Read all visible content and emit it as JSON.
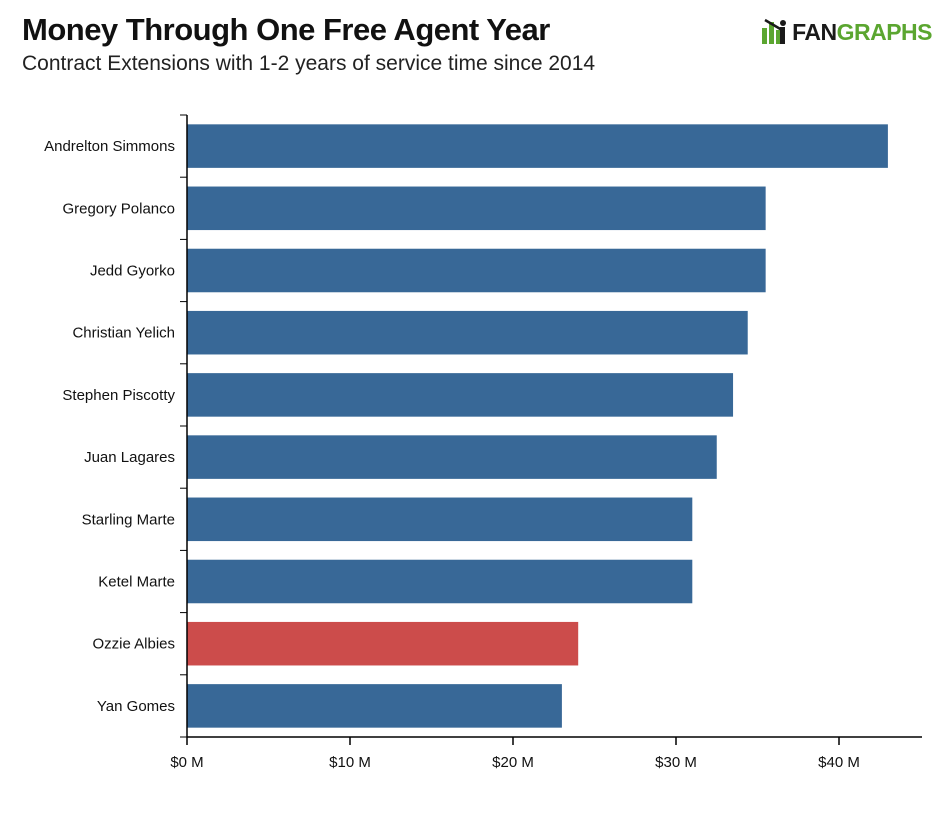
{
  "header": {
    "title": "Money Through One Free Agent Year",
    "subtitle": "Contract Extensions with 1-2 years of service time since 2014"
  },
  "logo": {
    "icon": "fangraphs-batter-icon",
    "text_part1": "FAN",
    "text_part2": "GRAPHS"
  },
  "colors": {
    "bar_default": "#386897",
    "bar_highlight": "#cc4c4b",
    "axis": "#000000",
    "logo_green": "#5ba630"
  },
  "chart_data": {
    "type": "bar",
    "orientation": "horizontal",
    "title": "Money Through One Free Agent Year",
    "subtitle": "Contract Extensions with 1-2 years of service time since 2014",
    "categories": [
      "Andrelton Simmons",
      "Gregory Polanco",
      "Jedd Gyorko",
      "Christian Yelich",
      "Stephen Piscotty",
      "Juan Lagares",
      "Starling Marte",
      "Ketel Marte",
      "Ozzie Albies",
      "Yan Gomes"
    ],
    "values": [
      43,
      35.5,
      35.5,
      34.4,
      33.5,
      32.5,
      31,
      31,
      24,
      23
    ],
    "highlight": [
      "Ozzie Albies"
    ],
    "xlim": [
      0,
      45
    ],
    "xticks": [
      0,
      10,
      20,
      30,
      40
    ],
    "xtick_labels": [
      "$0 M",
      "$10 M",
      "$20 M",
      "$30 M",
      "$40 M"
    ],
    "xlabel": "",
    "ylabel": "",
    "grid": false,
    "legend": "none"
  }
}
